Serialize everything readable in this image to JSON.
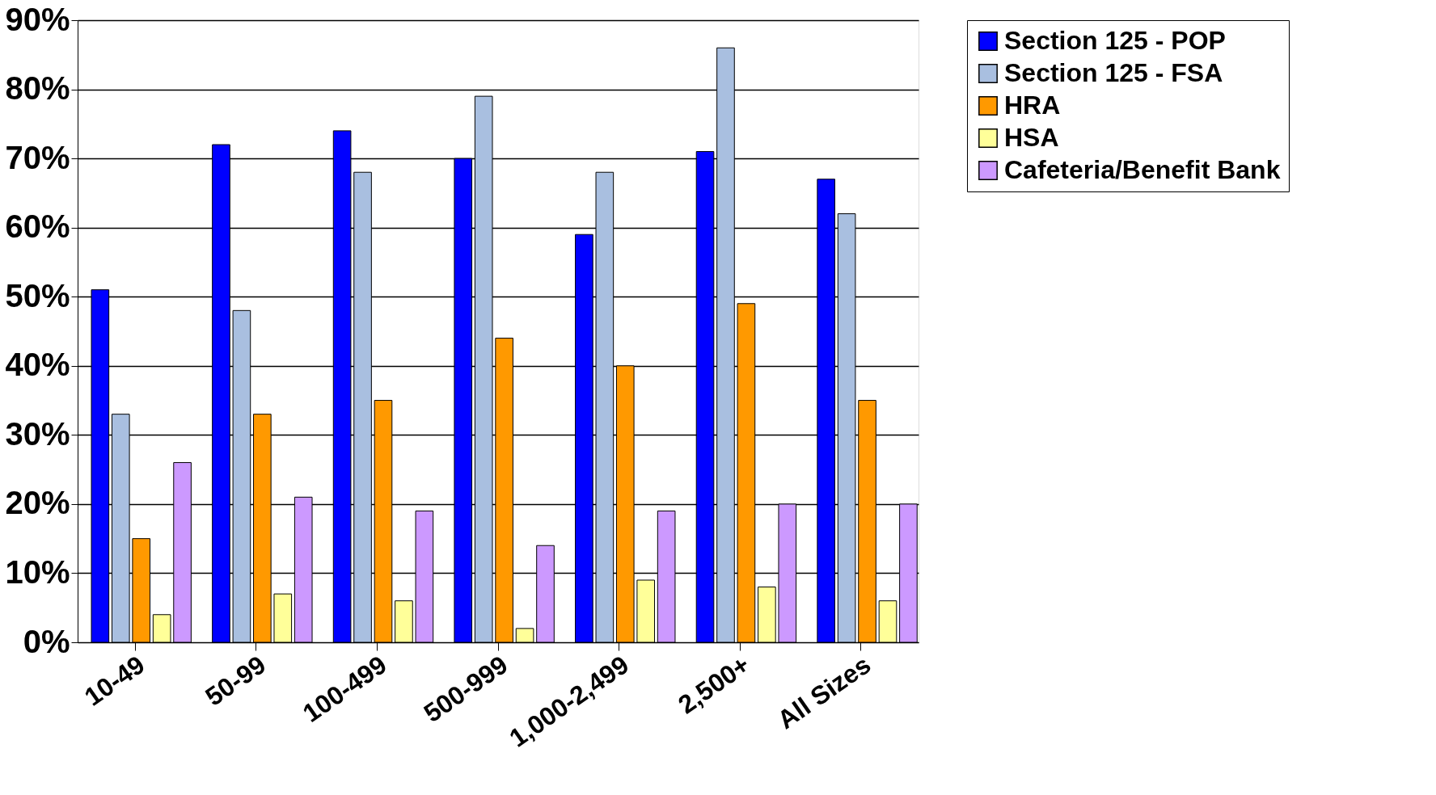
{
  "chart_data": {
    "type": "bar",
    "categories": [
      "10-49",
      "50-99",
      "100-499",
      "500-999",
      "1,000-2,499",
      "2,500+",
      "All Sizes"
    ],
    "series": [
      {
        "name": "Section 125 - POP",
        "color": "#0000ff",
        "values": [
          51,
          72,
          74,
          70,
          59,
          71,
          67
        ]
      },
      {
        "name": "Section 125 - FSA",
        "color": "#a9bfe0",
        "values": [
          33,
          48,
          68,
          79,
          68,
          86,
          62
        ]
      },
      {
        "name": "HRA",
        "color": "#ff9900",
        "values": [
          15,
          33,
          35,
          44,
          40,
          49,
          35
        ]
      },
      {
        "name": "HSA",
        "color": "#ffff99",
        "values": [
          4,
          7,
          6,
          2,
          9,
          8,
          6
        ]
      },
      {
        "name": "Cafeteria/Benefit Bank",
        "color": "#cc99ff",
        "values": [
          26,
          21,
          19,
          14,
          19,
          20,
          20
        ]
      }
    ],
    "ylim": [
      0,
      90
    ],
    "yticks": [
      {
        "value": 0,
        "label": "0%"
      },
      {
        "value": 10,
        "label": "10%"
      },
      {
        "value": 20,
        "label": "20%"
      },
      {
        "value": 30,
        "label": "30%"
      },
      {
        "value": 40,
        "label": "40%"
      },
      {
        "value": 50,
        "label": "50%"
      },
      {
        "value": 60,
        "label": "60%"
      },
      {
        "value": 70,
        "label": "70%"
      },
      {
        "value": 80,
        "label": "80%"
      },
      {
        "value": 90,
        "label": "90%"
      }
    ],
    "grid": "y",
    "legend": "right"
  }
}
